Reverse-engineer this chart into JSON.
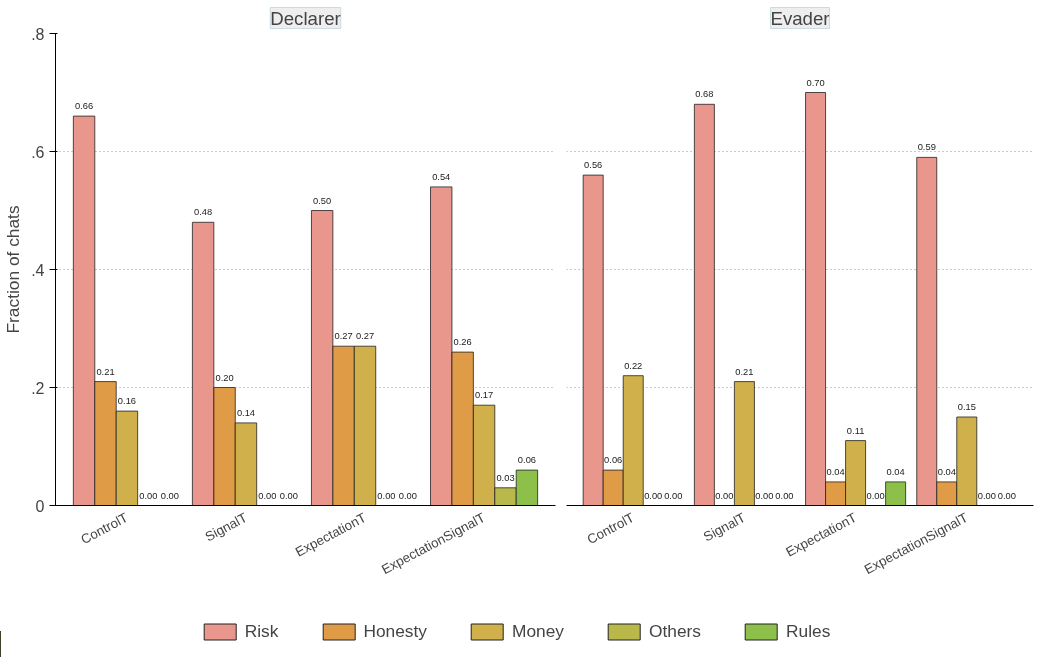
{
  "chart_data": [
    {
      "type": "bar",
      "title": "Declarer",
      "ylabel": "Fraction of chats",
      "categories": [
        "ControlT",
        "SignalT",
        "ExpectationT",
        "ExpectationSignalT"
      ],
      "ylim": [
        0,
        0.8
      ],
      "yticks": [
        {
          "value": 0,
          "label": "0"
        },
        {
          "value": 0.2,
          "label": ".2"
        },
        {
          "value": 0.4,
          "label": ".4"
        },
        {
          "value": 0.6,
          "label": ".6"
        },
        {
          "value": 0.8,
          "label": ".8"
        }
      ],
      "grid": "y",
      "legend": "bottom",
      "series": [
        {
          "name": "Risk",
          "color": "#e9968c",
          "values": [
            0.66,
            0.48,
            0.5,
            0.54
          ],
          "value_labels": [
            "0.66",
            "0.48",
            "0.50",
            "0.54"
          ]
        },
        {
          "name": "Honesty",
          "color": "#e09b47",
          "values": [
            0.21,
            0.2,
            0.27,
            0.26
          ],
          "value_labels": [
            "0.21",
            "0.20",
            "0.27",
            "0.26"
          ]
        },
        {
          "name": "Money",
          "color": "#d0b04b",
          "values": [
            0.16,
            0.14,
            0.27,
            0.17
          ],
          "value_labels": [
            "0.16",
            "0.14",
            "0.27",
            "0.17"
          ]
        },
        {
          "name": "Others",
          "color": "#b8b84b",
          "values": [
            0,
            0,
            0,
            0.03
          ],
          "value_labels": [
            "0.00",
            "0.00",
            "0.00",
            "0.03"
          ]
        },
        {
          "name": "Rules",
          "color": "#8dc04b",
          "values": [
            0,
            0,
            0,
            0.06
          ],
          "value_labels": [
            "0.00",
            "0.00",
            "0.00",
            "0.06"
          ]
        }
      ]
    },
    {
      "type": "bar",
      "title": "Evader",
      "categories": [
        "ControlT",
        "SignalT",
        "ExpectationT",
        "ExpectationSignalT"
      ],
      "ylim": [
        0,
        0.8
      ],
      "yticks": [
        0,
        0.2,
        0.4,
        0.6,
        0.8
      ],
      "grid": "y",
      "tick_labels": "x",
      "series": [
        {
          "color": "#e9968c",
          "values": [
            0.56,
            0.68,
            0.7,
            0.59
          ],
          "value_labels": [
            "0.56",
            "0.68",
            "0.70",
            "0.59"
          ]
        },
        {
          "color": "#e09b47",
          "values": [
            0.06,
            0,
            0.04,
            0.04
          ],
          "value_labels": [
            "0.06",
            "0.00",
            "0.04",
            "0.04"
          ]
        },
        {
          "color": "#d0b04b",
          "values": [
            0.22,
            0.21,
            0.11,
            0.15
          ],
          "value_labels": [
            "0.22",
            "0.21",
            "0.11",
            "0.15"
          ]
        },
        {
          "color": "#b8b84b",
          "values": [
            0,
            0,
            0,
            0
          ],
          "value_labels": [
            "0.00",
            "0.00",
            "0.00",
            "0.00"
          ]
        },
        {
          "color": "#8dc04b",
          "values": [
            0,
            0,
            0.04,
            0
          ],
          "value_labels": [
            "0.00",
            "0.00",
            "0.04",
            "0.00"
          ]
        }
      ]
    }
  ]
}
